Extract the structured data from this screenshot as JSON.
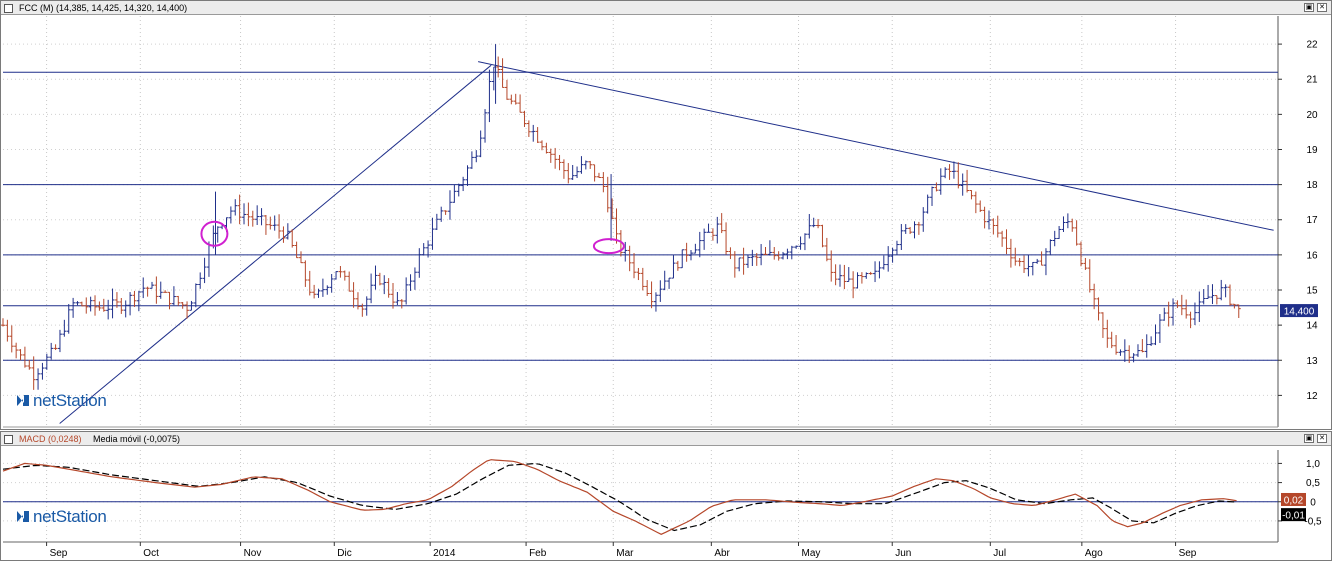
{
  "price_panel": {
    "title": "FCC (M) (14,385, 14,425, 14,320, 14,400)",
    "minimize_glyph": "▣",
    "close_glyph": "✕",
    "last_price_label": "14,400",
    "watermark": "netStation"
  },
  "macd_panel": {
    "title_macd": "MACD (0,0248)",
    "title_signal": "Media móvil (-0,0075)",
    "minimize_glyph": "▣",
    "close_glyph": "✕",
    "macd_badge": "0,02",
    "signal_badge": "-0,01",
    "watermark": "netStation"
  },
  "colors": {
    "up_bar": "#1f2f8a",
    "down_bar": "#b5472a",
    "trendline": "#1f2f8a",
    "hline": "#1f2f8a",
    "highlight": "#d020d0",
    "macd_line": "#b5472a",
    "signal_line": "#000000",
    "last_badge": "#1f2f8a",
    "macd_badge": "#b5472a",
    "signal_badge": "#000000"
  },
  "chart_data": [
    {
      "type": "ohlc",
      "ylim": [
        11.1,
        22.8
      ],
      "y_ticks": [
        "22",
        "21",
        "20",
        "19",
        "18",
        "17",
        "16",
        "15",
        "14",
        "13",
        "12"
      ],
      "y_tick_values": [
        22,
        21,
        20,
        19,
        18,
        17,
        16,
        15,
        14,
        13,
        12
      ],
      "x_ticks": [
        "Sep",
        "Oct",
        "Nov",
        "Dic",
        "2014",
        "Feb",
        "Mar",
        "Abr",
        "May",
        "Jun",
        "Jul",
        "Ago",
        "Sep"
      ],
      "x_tick_weeks": [
        2.0,
        6.3,
        10.9,
        15.2,
        19.6,
        24.0,
        28.0,
        32.5,
        36.5,
        40.8,
        45.3,
        49.5,
        53.8
      ],
      "price_anchors": [
        [
          0,
          14.0
        ],
        [
          0.8,
          13.1
        ],
        [
          1.4,
          12.6
        ],
        [
          2.4,
          13.3
        ],
        [
          3.2,
          14.6
        ],
        [
          4.5,
          14.5
        ],
        [
          5.5,
          14.6
        ],
        [
          6.5,
          15.1
        ],
        [
          8.5,
          14.5
        ],
        [
          9.8,
          16.8
        ],
        [
          10.5,
          17.3
        ],
        [
          12.0,
          16.9
        ],
        [
          13.0,
          16.6
        ],
        [
          14.3,
          14.7
        ],
        [
          15.3,
          15.6
        ],
        [
          16.5,
          14.5
        ],
        [
          17.2,
          15.4
        ],
        [
          18.2,
          14.5
        ],
        [
          19.0,
          15.8
        ],
        [
          20.0,
          17.0
        ],
        [
          21.2,
          18.3
        ],
        [
          21.8,
          19.1
        ],
        [
          22.5,
          21.5
        ],
        [
          23.0,
          20.6
        ],
        [
          24.2,
          19.6
        ],
        [
          25.0,
          19.0
        ],
        [
          26.0,
          18.2
        ],
        [
          26.8,
          18.6
        ],
        [
          27.6,
          17.9
        ],
        [
          28.2,
          16.3
        ],
        [
          29.2,
          15.4
        ],
        [
          29.8,
          14.8
        ],
        [
          30.6,
          15.5
        ],
        [
          31.2,
          16.0
        ],
        [
          32.0,
          16.4
        ],
        [
          32.8,
          16.8
        ],
        [
          33.5,
          15.7
        ],
        [
          34.5,
          15.9
        ],
        [
          35.5,
          16.0
        ],
        [
          36.5,
          16.4
        ],
        [
          37.3,
          16.9
        ],
        [
          38.0,
          15.4
        ],
        [
          39.0,
          15.2
        ],
        [
          40.0,
          15.4
        ],
        [
          40.8,
          16.3
        ],
        [
          42.0,
          17.0
        ],
        [
          43.0,
          18.2
        ],
        [
          43.5,
          18.4
        ],
        [
          44.2,
          17.8
        ],
        [
          45.0,
          17.1
        ],
        [
          45.8,
          16.5
        ],
        [
          46.5,
          15.8
        ],
        [
          47.4,
          15.6
        ],
        [
          48.4,
          16.7
        ],
        [
          49.0,
          17.0
        ],
        [
          49.6,
          15.6
        ],
        [
          50.1,
          14.5
        ],
        [
          50.6,
          13.6
        ],
        [
          51.2,
          13.3
        ],
        [
          52.3,
          13.2
        ],
        [
          53.0,
          14.0
        ],
        [
          53.8,
          14.6
        ],
        [
          54.6,
          14.3
        ],
        [
          55.3,
          14.8
        ],
        [
          56.0,
          15.0
        ],
        [
          56.7,
          14.4
        ]
      ],
      "horizontal_levels": [
        21.2,
        18.0,
        16.0,
        14.55,
        13.0
      ],
      "trendlines": [
        {
          "from": [
            2.6,
            11.2
          ],
          "to": [
            22.4,
            21.4
          ]
        },
        {
          "from": [
            21.8,
            21.5
          ],
          "to": [
            58.3,
            16.7
          ]
        }
      ],
      "highlights": [
        {
          "week": 9.7,
          "price": 16.6
        },
        {
          "week": 27.8,
          "price": 16.25
        }
      ],
      "last_price": 14.4
    },
    {
      "type": "line",
      "ylim": [
        -1.05,
        1.35
      ],
      "y_ticks": [
        "1,0",
        "0,5",
        "0",
        "-0,5"
      ],
      "y_tick_values": [
        1.0,
        0.5,
        0.0,
        -0.5
      ],
      "series": [
        {
          "name": "MACD (0,0248)",
          "anchors": [
            [
              0,
              0.8
            ],
            [
              1,
              1.0
            ],
            [
              2,
              0.95
            ],
            [
              3,
              0.85
            ],
            [
              5,
              0.65
            ],
            [
              7,
              0.5
            ],
            [
              8.8,
              0.38
            ],
            [
              10,
              0.45
            ],
            [
              11.5,
              0.65
            ],
            [
              12.8,
              0.6
            ],
            [
              14,
              0.3
            ],
            [
              15,
              0.0
            ],
            [
              16.5,
              -0.22
            ],
            [
              17.5,
              -0.2
            ],
            [
              18.5,
              -0.05
            ],
            [
              19.5,
              0.05
            ],
            [
              20.6,
              0.4
            ],
            [
              21.5,
              0.8
            ],
            [
              22.3,
              1.1
            ],
            [
              23.5,
              1.05
            ],
            [
              24.5,
              0.85
            ],
            [
              25.5,
              0.55
            ],
            [
              26.8,
              0.25
            ],
            [
              28,
              -0.25
            ],
            [
              29,
              -0.5
            ],
            [
              30.2,
              -0.85
            ],
            [
              31.5,
              -0.5
            ],
            [
              32.5,
              -0.12
            ],
            [
              33.5,
              0.05
            ],
            [
              35,
              0.05
            ],
            [
              36.5,
              -0.02
            ],
            [
              37.5,
              -0.05
            ],
            [
              38.5,
              -0.1
            ],
            [
              39.5,
              0.0
            ],
            [
              40.8,
              0.15
            ],
            [
              41.8,
              0.4
            ],
            [
              42.8,
              0.6
            ],
            [
              43.6,
              0.55
            ],
            [
              44.5,
              0.35
            ],
            [
              45.3,
              0.1
            ],
            [
              46.3,
              -0.05
            ],
            [
              47.3,
              -0.1
            ],
            [
              48.3,
              0.05
            ],
            [
              49.2,
              0.2
            ],
            [
              50.2,
              -0.1
            ],
            [
              50.9,
              -0.5
            ],
            [
              51.6,
              -0.65
            ],
            [
              52.3,
              -0.55
            ],
            [
              53.2,
              -0.3
            ],
            [
              54,
              -0.1
            ],
            [
              55,
              0.05
            ],
            [
              56,
              0.08
            ],
            [
              56.7,
              0.02
            ]
          ]
        },
        {
          "name": "Media móvil (-0,0075)",
          "anchors": [
            [
              0,
              0.85
            ],
            [
              1.5,
              0.95
            ],
            [
              3,
              0.9
            ],
            [
              5,
              0.7
            ],
            [
              7,
              0.55
            ],
            [
              9,
              0.4
            ],
            [
              10.5,
              0.5
            ],
            [
              12,
              0.65
            ],
            [
              13.5,
              0.5
            ],
            [
              15,
              0.15
            ],
            [
              16.5,
              -0.1
            ],
            [
              18,
              -0.2
            ],
            [
              19.5,
              -0.05
            ],
            [
              20.8,
              0.2
            ],
            [
              22,
              0.6
            ],
            [
              23.2,
              0.95
            ],
            [
              24.5,
              1.0
            ],
            [
              25.8,
              0.75
            ],
            [
              27,
              0.4
            ],
            [
              28.3,
              0.0
            ],
            [
              29.5,
              -0.45
            ],
            [
              30.8,
              -0.75
            ],
            [
              32,
              -0.6
            ],
            [
              33.2,
              -0.25
            ],
            [
              34.5,
              -0.05
            ],
            [
              36,
              0.02
            ],
            [
              37.5,
              0.0
            ],
            [
              39,
              -0.05
            ],
            [
              40.5,
              -0.05
            ],
            [
              42,
              0.25
            ],
            [
              43.2,
              0.5
            ],
            [
              44.2,
              0.55
            ],
            [
              45.3,
              0.35
            ],
            [
              46.5,
              0.05
            ],
            [
              47.8,
              -0.05
            ],
            [
              49,
              0.05
            ],
            [
              50,
              0.1
            ],
            [
              50.8,
              -0.15
            ],
            [
              51.8,
              -0.5
            ],
            [
              52.8,
              -0.55
            ],
            [
              53.8,
              -0.3
            ],
            [
              54.8,
              -0.1
            ],
            [
              55.8,
              0.02
            ],
            [
              56.7,
              -0.01
            ]
          ]
        }
      ]
    }
  ]
}
